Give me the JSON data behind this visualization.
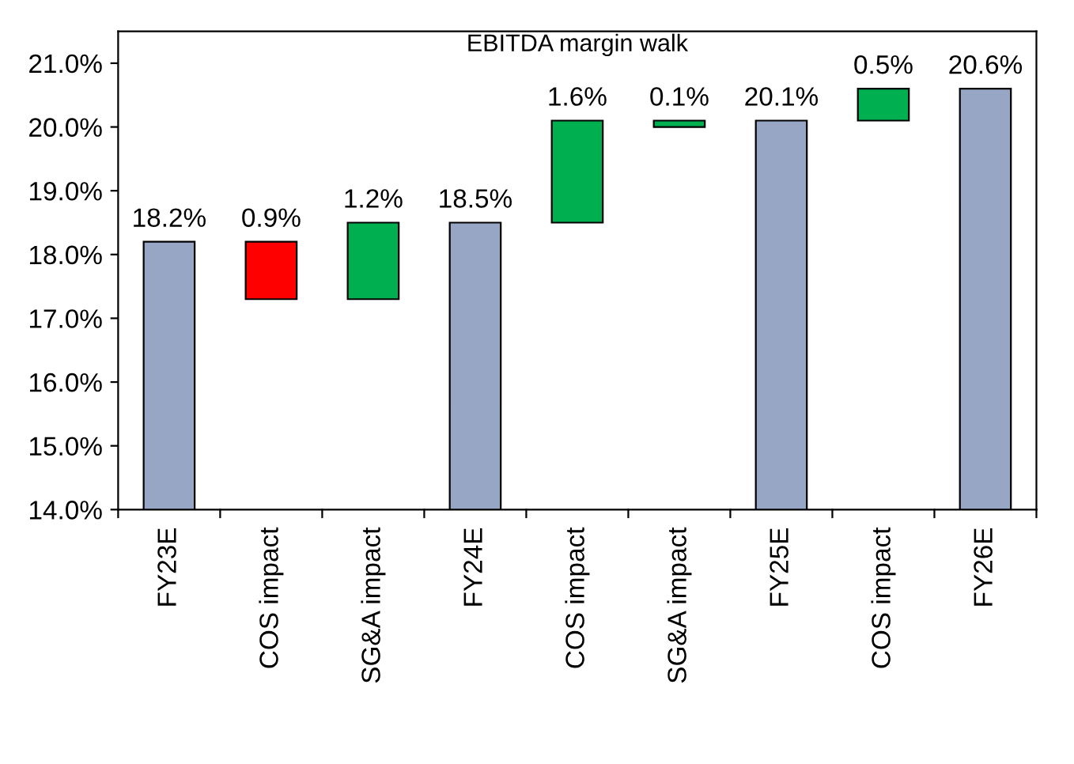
{
  "chart_data": {
    "type": "bar",
    "title": "EBITDA margin walk",
    "categories": [
      "FY23E",
      "COS impact",
      "SG&A impact",
      "FY24E",
      "COS impact",
      "SG&A impact",
      "FY25E",
      "COS impact",
      "FY26E"
    ],
    "values": [
      18.2,
      -0.9,
      1.2,
      18.5,
      1.6,
      0.1,
      20.1,
      0.5,
      20.6
    ],
    "base": [
      null,
      18.2,
      17.3,
      null,
      18.5,
      20.0,
      null,
      20.1,
      null
    ],
    "colors": [
      "#98a6c5",
      "#ff0000",
      "#00b050",
      "#98a6c5",
      "#00b050",
      "#00b050",
      "#98a6c5",
      "#00b050",
      "#98a6c5"
    ],
    "value_labels": [
      "18.2%",
      "0.9%",
      "1.2%",
      "18.5%",
      "1.6%",
      "0.1%",
      "20.1%",
      "0.5%",
      "20.6%"
    ],
    "ylim": [
      14,
      21.5
    ],
    "yticks": [
      {
        "value": 14,
        "label": "14.0%"
      },
      {
        "value": 15,
        "label": "15.0%"
      },
      {
        "value": 16,
        "label": "16.0%"
      },
      {
        "value": 17,
        "label": "17.0%"
      },
      {
        "value": 18,
        "label": "18.0%"
      },
      {
        "value": 19,
        "label": "19.0%"
      },
      {
        "value": 20,
        "label": "20.0%"
      },
      {
        "value": 21,
        "label": "21.0%"
      }
    ],
    "grid": false,
    "legend": false
  }
}
